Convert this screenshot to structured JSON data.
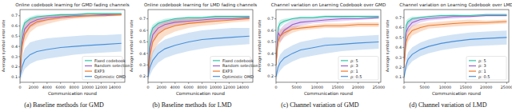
{
  "chart_data": [
    {
      "type": "line",
      "title": "Online codebook learning for GMD fading channels",
      "caption": "(a) Baseline methods for GMD",
      "x_label": "Communication round",
      "y_label": "Average symbol error rate",
      "legend": "lower right",
      "x": [
        0,
        300,
        700,
        1500,
        2500,
        4000,
        6000,
        8000,
        10000,
        12500,
        15000
      ],
      "xlim": [
        0,
        15500
      ],
      "xticks": [
        0,
        2000,
        4000,
        6000,
        8000,
        10000,
        12000,
        14000
      ],
      "ylim": [
        0.05,
        0.76
      ],
      "yticks": [
        0.1,
        0.2,
        0.3,
        0.4,
        0.5,
        0.6,
        0.7
      ],
      "series": [
        {
          "name": "Fixed codebook",
          "color": "#2ec4a6",
          "values": [
            0.12,
            0.55,
            0.63,
            0.67,
            0.69,
            0.7,
            0.71,
            0.71,
            0.72,
            0.72,
            0.72
          ],
          "lower": [
            0.08,
            0.5,
            0.6,
            0.65,
            0.67,
            0.69,
            0.7,
            0.7,
            0.71,
            0.71,
            0.71
          ],
          "upper": [
            0.16,
            0.6,
            0.66,
            0.69,
            0.71,
            0.71,
            0.72,
            0.72,
            0.73,
            0.73,
            0.73
          ]
        },
        {
          "name": "Random selection",
          "color": "#9a5fd0",
          "values": [
            0.12,
            0.45,
            0.57,
            0.63,
            0.66,
            0.68,
            0.69,
            0.7,
            0.7,
            0.71,
            0.71
          ],
          "lower": [
            0.08,
            0.35,
            0.5,
            0.58,
            0.62,
            0.65,
            0.67,
            0.68,
            0.69,
            0.7,
            0.7
          ],
          "upper": [
            0.16,
            0.55,
            0.63,
            0.67,
            0.69,
            0.7,
            0.71,
            0.72,
            0.72,
            0.72,
            0.72
          ]
        },
        {
          "name": "EXP3",
          "color": "#f07a2a",
          "values": [
            0.12,
            0.4,
            0.52,
            0.6,
            0.64,
            0.66,
            0.68,
            0.69,
            0.7,
            0.7,
            0.71
          ],
          "lower": [
            0.08,
            0.3,
            0.44,
            0.54,
            0.59,
            0.62,
            0.65,
            0.67,
            0.68,
            0.69,
            0.7
          ],
          "upper": [
            0.16,
            0.5,
            0.6,
            0.66,
            0.68,
            0.7,
            0.71,
            0.71,
            0.72,
            0.72,
            0.72
          ]
        },
        {
          "name": "Optimistic OMD",
          "color": "#4a90d9",
          "values": [
            0.1,
            0.2,
            0.27,
            0.32,
            0.35,
            0.37,
            0.39,
            0.4,
            0.41,
            0.42,
            0.43
          ],
          "lower": [
            0.06,
            0.12,
            0.18,
            0.23,
            0.26,
            0.28,
            0.3,
            0.32,
            0.33,
            0.34,
            0.35
          ],
          "upper": [
            0.14,
            0.3,
            0.38,
            0.44,
            0.46,
            0.48,
            0.49,
            0.5,
            0.51,
            0.51,
            0.52
          ]
        }
      ]
    },
    {
      "type": "line",
      "title": "Online codebook learning for LMD fading channels",
      "caption": "(b) Baseline methods for LMD",
      "x_label": "Communication round",
      "y_label": "Average symbol error rate",
      "legend": "lower right",
      "x": [
        0,
        300,
        700,
        1500,
        2500,
        4000,
        6000,
        8000,
        10000,
        12500,
        15000
      ],
      "xlim": [
        0,
        15500
      ],
      "xticks": [
        0,
        2000,
        4000,
        6000,
        8000,
        10000,
        12000,
        14000
      ],
      "ylim": [
        0.15,
        0.78
      ],
      "yticks": [
        0.2,
        0.3,
        0.4,
        0.5,
        0.6,
        0.7
      ],
      "series": [
        {
          "name": "Fixed codebook",
          "color": "#2ec4a6",
          "values": [
            0.2,
            0.55,
            0.62,
            0.66,
            0.68,
            0.7,
            0.71,
            0.71,
            0.72,
            0.72,
            0.72
          ],
          "lower": [
            0.17,
            0.5,
            0.59,
            0.64,
            0.66,
            0.68,
            0.69,
            0.7,
            0.71,
            0.71,
            0.71
          ],
          "upper": [
            0.23,
            0.6,
            0.65,
            0.68,
            0.7,
            0.71,
            0.72,
            0.72,
            0.73,
            0.73,
            0.73
          ]
        },
        {
          "name": "Random selection",
          "color": "#9a5fd0",
          "values": [
            0.2,
            0.45,
            0.56,
            0.62,
            0.65,
            0.67,
            0.68,
            0.69,
            0.7,
            0.7,
            0.71
          ],
          "lower": [
            0.17,
            0.36,
            0.49,
            0.57,
            0.61,
            0.64,
            0.66,
            0.67,
            0.68,
            0.69,
            0.7
          ],
          "upper": [
            0.23,
            0.54,
            0.62,
            0.66,
            0.68,
            0.7,
            0.7,
            0.71,
            0.72,
            0.72,
            0.72
          ]
        },
        {
          "name": "EXP3",
          "color": "#f07a2a",
          "values": [
            0.2,
            0.38,
            0.5,
            0.57,
            0.61,
            0.64,
            0.66,
            0.67,
            0.68,
            0.69,
            0.7
          ],
          "lower": [
            0.17,
            0.28,
            0.4,
            0.49,
            0.55,
            0.59,
            0.62,
            0.64,
            0.65,
            0.67,
            0.68
          ],
          "upper": [
            0.23,
            0.48,
            0.59,
            0.64,
            0.67,
            0.69,
            0.7,
            0.7,
            0.71,
            0.71,
            0.72
          ]
        },
        {
          "name": "Optimistic OMD",
          "color": "#4a90d9",
          "values": [
            0.2,
            0.28,
            0.34,
            0.4,
            0.44,
            0.47,
            0.5,
            0.52,
            0.53,
            0.54,
            0.55
          ],
          "lower": [
            0.17,
            0.21,
            0.26,
            0.32,
            0.36,
            0.39,
            0.42,
            0.44,
            0.46,
            0.47,
            0.48
          ],
          "upper": [
            0.23,
            0.35,
            0.42,
            0.48,
            0.52,
            0.55,
            0.58,
            0.6,
            0.61,
            0.62,
            0.62
          ]
        }
      ]
    },
    {
      "type": "line",
      "title": "Channel variation on Learning Codebook over GMD",
      "caption": "(c) Channel variation of GMD",
      "x_label": "Communication round",
      "y_label": "Average symbol error rate",
      "legend": "lower right",
      "x": [
        0,
        500,
        1000,
        2000,
        4000,
        6000,
        9000,
        12000,
        16000,
        20000,
        25000
      ],
      "xlim": [
        0,
        25500
      ],
      "xticks": [
        0,
        5000,
        10000,
        15000,
        20000,
        25000
      ],
      "ylim": [
        0.15,
        0.78
      ],
      "yticks": [
        0.2,
        0.3,
        0.4,
        0.5,
        0.6,
        0.7
      ],
      "series": [
        {
          "name": "ρ: 5",
          "color": "#2ec4a6",
          "values": [
            0.3,
            0.62,
            0.66,
            0.68,
            0.7,
            0.71,
            0.71,
            0.72,
            0.72,
            0.72,
            0.72
          ],
          "lower": [
            0.26,
            0.58,
            0.63,
            0.66,
            0.69,
            0.7,
            0.7,
            0.71,
            0.71,
            0.71,
            0.71
          ],
          "upper": [
            0.34,
            0.66,
            0.69,
            0.7,
            0.71,
            0.72,
            0.72,
            0.73,
            0.73,
            0.73,
            0.73
          ]
        },
        {
          "name": "ρ: 3",
          "color": "#9a5fd0",
          "values": [
            0.3,
            0.58,
            0.55,
            0.6,
            0.65,
            0.67,
            0.68,
            0.69,
            0.7,
            0.7,
            0.71
          ],
          "lower": [
            0.26,
            0.52,
            0.49,
            0.55,
            0.61,
            0.64,
            0.66,
            0.67,
            0.68,
            0.69,
            0.7
          ],
          "upper": [
            0.34,
            0.64,
            0.61,
            0.65,
            0.69,
            0.7,
            0.7,
            0.71,
            0.72,
            0.71,
            0.72
          ]
        },
        {
          "name": "ρ: 1",
          "color": "#f07a2a",
          "values": [
            0.3,
            0.5,
            0.55,
            0.58,
            0.61,
            0.62,
            0.63,
            0.64,
            0.64,
            0.65,
            0.65
          ],
          "lower": [
            0.26,
            0.44,
            0.5,
            0.54,
            0.58,
            0.6,
            0.61,
            0.62,
            0.62,
            0.63,
            0.63
          ],
          "upper": [
            0.34,
            0.56,
            0.6,
            0.62,
            0.64,
            0.64,
            0.65,
            0.66,
            0.66,
            0.67,
            0.67
          ]
        },
        {
          "name": "ρ: 0.5",
          "color": "#4a90d9",
          "values": [
            0.2,
            0.28,
            0.32,
            0.36,
            0.4,
            0.43,
            0.45,
            0.47,
            0.48,
            0.49,
            0.5
          ],
          "lower": [
            0.17,
            0.22,
            0.25,
            0.29,
            0.33,
            0.36,
            0.38,
            0.4,
            0.42,
            0.43,
            0.44
          ],
          "upper": [
            0.23,
            0.34,
            0.39,
            0.43,
            0.47,
            0.5,
            0.52,
            0.54,
            0.54,
            0.55,
            0.56
          ]
        }
      ]
    },
    {
      "type": "line",
      "title": "Channel variation on Learning Codebook over LMD",
      "caption": "(d) Channel variation of LMD",
      "x_label": "Communication round",
      "y_label": "Average symbol error rate",
      "legend": "lower right",
      "x": [
        0,
        500,
        1000,
        2000,
        4000,
        6000,
        9000,
        12000,
        16000,
        20000,
        25000
      ],
      "xlim": [
        0,
        25500
      ],
      "xticks": [
        0,
        5000,
        10000,
        15000,
        20000,
        25000
      ],
      "ylim": [
        0.05,
        0.78
      ],
      "yticks": [
        0.1,
        0.2,
        0.3,
        0.4,
        0.5,
        0.6,
        0.7
      ],
      "series": [
        {
          "name": "ρ: 5",
          "color": "#2ec4a6",
          "values": [
            0.2,
            0.62,
            0.66,
            0.69,
            0.7,
            0.71,
            0.72,
            0.72,
            0.72,
            0.73,
            0.73
          ],
          "lower": [
            0.16,
            0.57,
            0.63,
            0.67,
            0.69,
            0.7,
            0.71,
            0.71,
            0.71,
            0.72,
            0.72
          ],
          "upper": [
            0.24,
            0.67,
            0.69,
            0.71,
            0.71,
            0.72,
            0.73,
            0.73,
            0.73,
            0.74,
            0.74
          ]
        },
        {
          "name": "ρ: 3",
          "color": "#9a5fd0",
          "values": [
            0.2,
            0.55,
            0.6,
            0.65,
            0.68,
            0.69,
            0.7,
            0.71,
            0.71,
            0.72,
            0.72
          ],
          "lower": [
            0.16,
            0.49,
            0.55,
            0.61,
            0.65,
            0.67,
            0.68,
            0.69,
            0.7,
            0.71,
            0.71
          ],
          "upper": [
            0.24,
            0.61,
            0.65,
            0.69,
            0.71,
            0.71,
            0.72,
            0.73,
            0.72,
            0.73,
            0.73
          ]
        },
        {
          "name": "ρ: 1",
          "color": "#f07a2a",
          "values": [
            0.2,
            0.45,
            0.52,
            0.57,
            0.6,
            0.62,
            0.63,
            0.64,
            0.65,
            0.65,
            0.66
          ],
          "lower": [
            0.16,
            0.38,
            0.46,
            0.52,
            0.56,
            0.59,
            0.6,
            0.61,
            0.62,
            0.63,
            0.64
          ],
          "upper": [
            0.24,
            0.52,
            0.58,
            0.62,
            0.64,
            0.65,
            0.66,
            0.67,
            0.68,
            0.67,
            0.68
          ]
        },
        {
          "name": "ρ: 0.5",
          "color": "#4a90d9",
          "values": [
            0.1,
            0.22,
            0.28,
            0.33,
            0.38,
            0.41,
            0.44,
            0.46,
            0.48,
            0.49,
            0.5
          ],
          "lower": [
            0.07,
            0.16,
            0.21,
            0.26,
            0.31,
            0.34,
            0.37,
            0.39,
            0.41,
            0.42,
            0.43
          ],
          "upper": [
            0.13,
            0.28,
            0.35,
            0.4,
            0.45,
            0.48,
            0.51,
            0.53,
            0.55,
            0.56,
            0.57
          ]
        }
      ]
    }
  ]
}
